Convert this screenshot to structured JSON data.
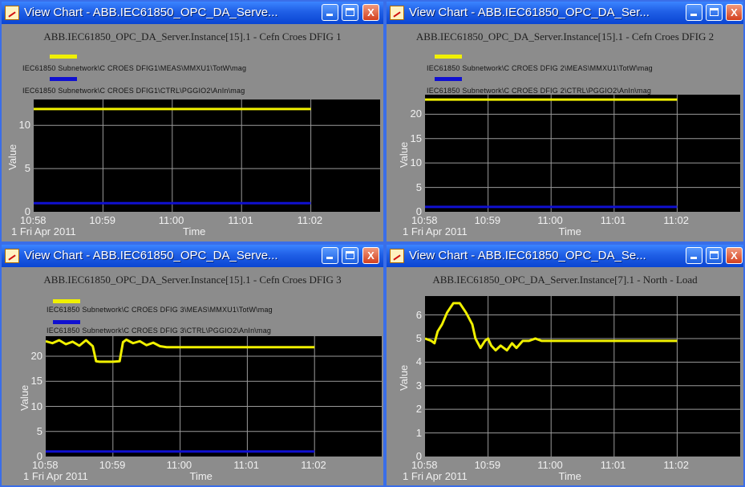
{
  "windows": [
    {
      "title": "View Chart - ABB.IEC61850_OPC_DA_Serve...",
      "chart_title": "ABB.IEC61850_OPC_DA_Server.Instance[15].1 - Cefn Croes DFIG 1",
      "legend": [
        {
          "label": "IEC61850 Subnetwork\\C CROES DFIG1\\MEAS\\MMXU1\\TotW\\mag",
          "color": "#f0f000"
        },
        {
          "label": "IEC61850 Subnetwork\\C CROES DFIG1\\CTRL\\PGGIO2\\AnIn\\mag",
          "color": "#1010d0"
        }
      ],
      "buttons": {
        "minimize": "minimize",
        "maximize": "maximize",
        "close": "X"
      }
    },
    {
      "title": "View Chart - ABB.IEC61850_OPC_DA_Ser...",
      "chart_title": "ABB.IEC61850_OPC_DA_Server.Instance[15].1 - Cefn Croes DFIG 2",
      "legend": [
        {
          "label": "IEC61850 Subnetwork\\C CROES DFIG 2\\MEAS\\MMXU1\\TotW\\mag",
          "color": "#f0f000"
        },
        {
          "label": "IEC61850 Subnetwork\\C CROES DFIG 2\\CTRL\\PGGIO2\\AnIn\\mag",
          "color": "#1010d0"
        }
      ],
      "buttons": {
        "minimize": "minimize",
        "maximize": "maximize",
        "close": "X"
      }
    },
    {
      "title": "View Chart - ABB.IEC61850_OPC_DA_Serve...",
      "chart_title": "ABB.IEC61850_OPC_DA_Server.Instance[15].1 - Cefn Croes DFIG 3",
      "legend": [
        {
          "label": "IEC61850 Subnetwork\\C CROES DFIG 3\\MEAS\\MMXU1\\TotW\\mag",
          "color": "#f0f000"
        },
        {
          "label": "IEC61850 Subnetwork\\C CROES DFIG 3\\CTRL\\PGGIO2\\AnIn\\mag",
          "color": "#1010d0"
        }
      ],
      "buttons": {
        "minimize": "minimize",
        "maximize": "maximize",
        "close": "X"
      }
    },
    {
      "title": "View Chart - ABB.IEC61850_OPC_DA_Se...",
      "chart_title": "ABB.IEC61850_OPC_DA_Server.Instance[7].1 - North - Load",
      "legend": [],
      "buttons": {
        "minimize": "minimize",
        "maximize": "maximize",
        "close": "X"
      }
    }
  ],
  "chart_data": [
    {
      "type": "line",
      "xlabel": "Time",
      "ylabel": "Value",
      "x_ticks": [
        "10:58",
        "10:59",
        "11:00",
        "11:01",
        "11:02"
      ],
      "date_label": "1 Fri Apr 2011",
      "y_ticks": [
        "0",
        "5",
        "10"
      ],
      "ylim": [
        0,
        13
      ],
      "series": [
        {
          "name": "IEC61850 Subnetwork\\C CROES DFIG1\\MEAS\\MMXU1\\TotW\\mag",
          "color": "#f0f000",
          "x": [
            0,
            4.0
          ],
          "y": [
            11.9,
            11.9
          ]
        },
        {
          "name": "IEC61850 Subnetwork\\C CROES DFIG1\\CTRL\\PGGIO2\\AnIn\\mag",
          "color": "#1010d0",
          "x": [
            0,
            4.0
          ],
          "y": [
            1.0,
            1.0
          ]
        }
      ]
    },
    {
      "type": "line",
      "xlabel": "Time",
      "ylabel": "Value",
      "x_ticks": [
        "10:58",
        "10:59",
        "11:00",
        "11:01",
        "11:02"
      ],
      "date_label": "1 Fri Apr 2011",
      "y_ticks": [
        "0",
        "5",
        "10",
        "15",
        "20"
      ],
      "ylim": [
        0,
        24
      ],
      "series": [
        {
          "name": "IEC61850 Subnetwork\\C CROES DFIG 2\\MEAS\\MMXU1\\TotW\\mag",
          "color": "#f0f000",
          "x": [
            0,
            4.0
          ],
          "y": [
            23.0,
            23.0
          ]
        },
        {
          "name": "IEC61850 Subnetwork\\C CROES DFIG 2\\CTRL\\PGGIO2\\AnIn\\mag",
          "color": "#1010d0",
          "x": [
            0,
            4.0
          ],
          "y": [
            1.0,
            1.0
          ]
        }
      ]
    },
    {
      "type": "line",
      "xlabel": "Time",
      "ylabel": "Value",
      "x_ticks": [
        "10:58",
        "10:59",
        "11:00",
        "11:01",
        "11:02"
      ],
      "date_label": "1 Fri Apr 2011",
      "y_ticks": [
        "0",
        "5",
        "10",
        "15",
        "20"
      ],
      "ylim": [
        0,
        24
      ],
      "series": [
        {
          "name": "IEC61850 Subnetwork\\C CROES DFIG 3\\MEAS\\MMXU1\\TotW\\mag",
          "color": "#f0f000",
          "x": [
            0,
            0.1,
            0.2,
            0.3,
            0.4,
            0.5,
            0.6,
            0.7,
            0.75,
            0.8,
            0.9,
            1.0,
            1.1,
            1.15,
            1.2,
            1.3,
            1.4,
            1.5,
            1.6,
            1.7,
            1.8,
            2.0,
            2.5,
            3.0,
            3.5,
            4.0
          ],
          "y": [
            23.0,
            22.6,
            23.2,
            22.4,
            22.9,
            22.1,
            23.2,
            22.0,
            19.0,
            18.9,
            18.9,
            18.9,
            19.0,
            22.8,
            23.3,
            22.6,
            23.0,
            22.2,
            22.7,
            22.0,
            21.8,
            21.8,
            21.8,
            21.8,
            21.8,
            21.8
          ]
        },
        {
          "name": "IEC61850 Subnetwork\\C CROES DFIG 3\\CTRL\\PGGIO2\\AnIn\\mag",
          "color": "#1010d0",
          "x": [
            0,
            4.0
          ],
          "y": [
            1.0,
            1.0
          ]
        }
      ]
    },
    {
      "type": "line",
      "xlabel": "Time",
      "ylabel": "Value",
      "x_ticks": [
        "10:58",
        "10:59",
        "11:00",
        "11:01",
        "11:02"
      ],
      "date_label": "1 Fri Apr 2011",
      "y_ticks": [
        "0",
        "1",
        "2",
        "3",
        "4",
        "5",
        "6"
      ],
      "ylim": [
        0,
        6.8
      ],
      "series": [
        {
          "color": "#f0f000",
          "x": [
            0,
            0.1,
            0.15,
            0.2,
            0.27,
            0.35,
            0.45,
            0.55,
            0.65,
            0.75,
            0.8,
            0.88,
            0.95,
            1.0,
            1.05,
            1.12,
            1.2,
            1.3,
            1.38,
            1.45,
            1.55,
            1.65,
            1.75,
            1.85,
            2.0,
            2.5,
            3.0,
            3.5,
            4.0
          ],
          "y": [
            5.0,
            4.9,
            4.8,
            5.3,
            5.6,
            6.1,
            6.5,
            6.5,
            6.1,
            5.6,
            5.0,
            4.6,
            4.9,
            5.0,
            4.7,
            4.5,
            4.7,
            4.5,
            4.8,
            4.6,
            4.9,
            4.9,
            5.0,
            4.9,
            4.9,
            4.9,
            4.9,
            4.9,
            4.9
          ]
        }
      ]
    }
  ]
}
